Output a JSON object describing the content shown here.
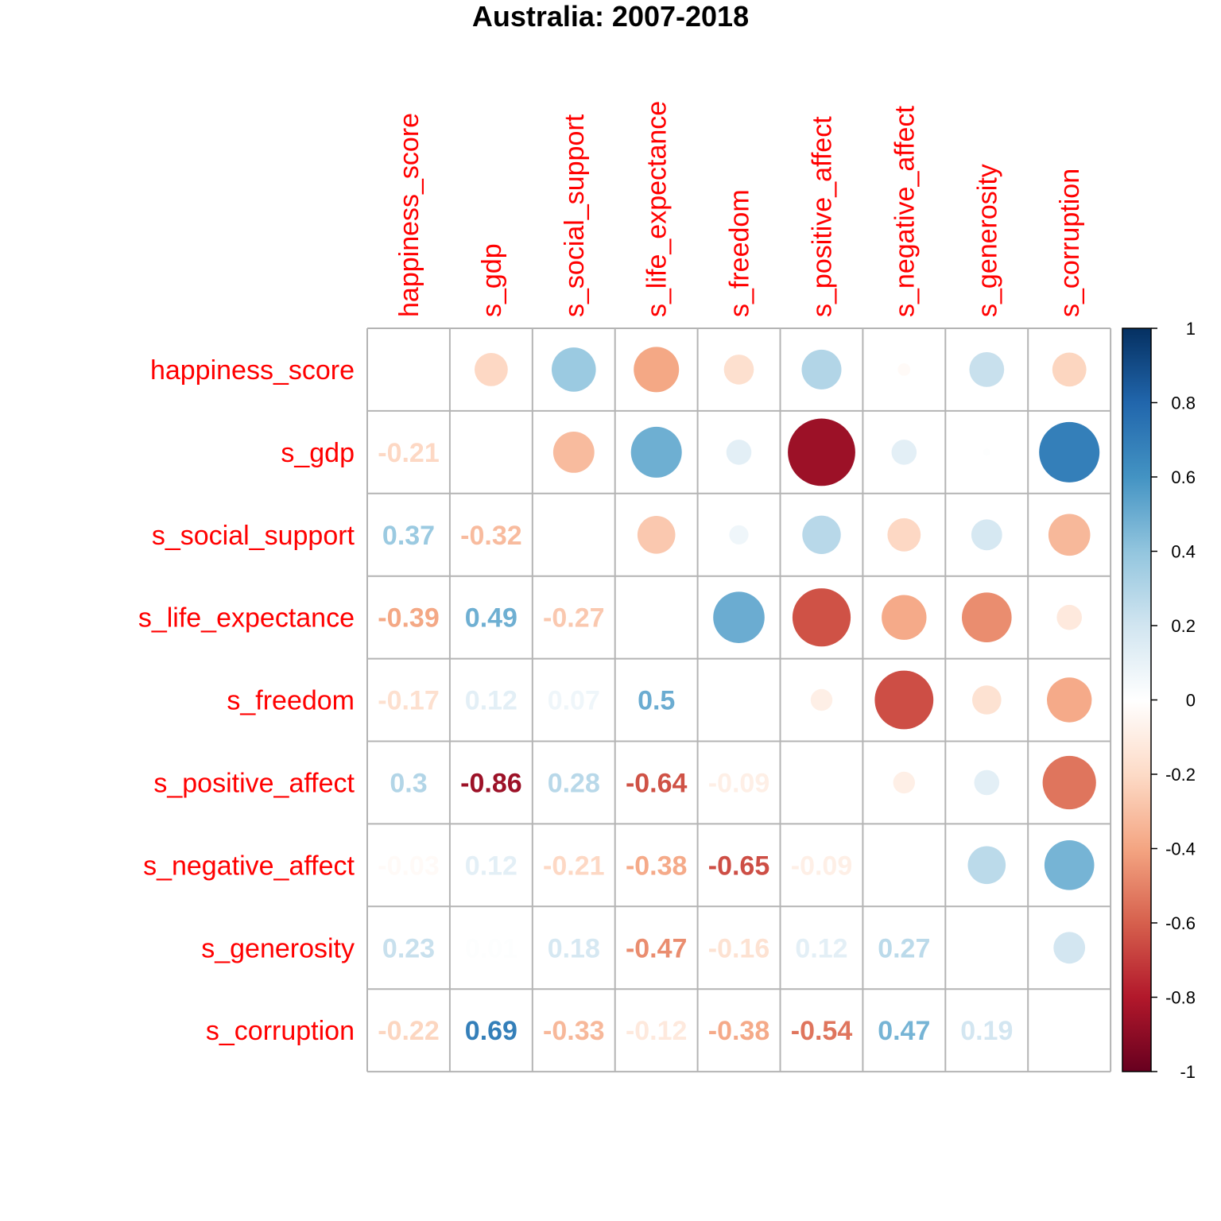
{
  "chart_data": {
    "type": "heatmap",
    "title": "Australia: 2007-2018",
    "variables": [
      "happiness_score",
      "s_gdp",
      "s_social_support",
      "s_life_expectance",
      "s_freedom",
      "s_positive_affect",
      "s_negative_affect",
      "s_generosity",
      "s_corruption"
    ],
    "matrix": [
      [
        1,
        -0.21,
        0.37,
        -0.39,
        -0.17,
        0.3,
        -0.03,
        0.23,
        -0.22
      ],
      [
        -0.21,
        1,
        -0.32,
        0.49,
        0.12,
        -0.86,
        0.12,
        0.01,
        0.69
      ],
      [
        0.37,
        -0.32,
        1,
        -0.27,
        0.07,
        0.28,
        -0.21,
        0.18,
        -0.33
      ],
      [
        -0.39,
        0.49,
        -0.27,
        1,
        0.5,
        -0.64,
        -0.38,
        -0.47,
        -0.12
      ],
      [
        -0.17,
        0.12,
        0.07,
        0.5,
        1,
        -0.09,
        -0.65,
        -0.16,
        -0.38
      ],
      [
        0.3,
        -0.86,
        0.28,
        -0.64,
        -0.09,
        1,
        -0.09,
        0.12,
        -0.54
      ],
      [
        -0.03,
        0.12,
        -0.21,
        -0.38,
        -0.65,
        -0.09,
        1,
        0.27,
        0.47
      ],
      [
        0.23,
        0.01,
        0.18,
        -0.47,
        -0.16,
        0.12,
        0.27,
        1,
        0.19
      ],
      [
        -0.22,
        0.69,
        -0.33,
        -0.12,
        -0.38,
        -0.54,
        0.47,
        0.19,
        1
      ]
    ],
    "upper_display": "circle",
    "lower_display": "number",
    "diagonal_shown": false,
    "colorbar": {
      "range": [
        -1,
        1
      ],
      "ticks": [
        "1",
        "0.8",
        "0.6",
        "0.4",
        "0.2",
        "0",
        "-0.2",
        "-0.4",
        "-0.6",
        "-0.8",
        "-1"
      ],
      "palette": [
        "#67001F",
        "#B2182B",
        "#D6604D",
        "#F4A582",
        "#FDDBC7",
        "#FFFFFF",
        "#D1E5F0",
        "#92C5DE",
        "#4393C3",
        "#2166AC",
        "#053061"
      ],
      "placement": "right"
    },
    "label_color": "#ff0000",
    "grid_color": "#b4b4b4"
  }
}
